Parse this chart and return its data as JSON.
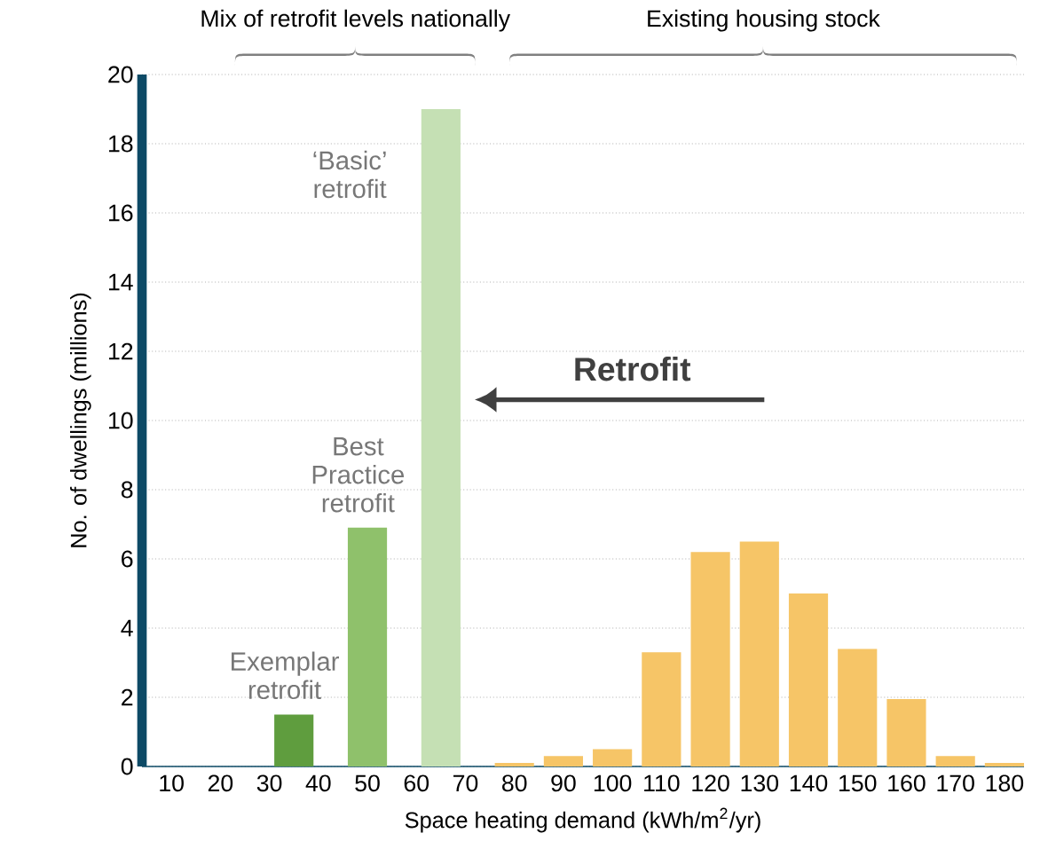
{
  "chart_data": {
    "type": "bar",
    "xlabel": "Space heating demand (kWh/m$^{2}$/yr)",
    "ylabel": "No. of dwellings (millions)",
    "x": [
      35,
      50,
      65,
      80,
      90,
      100,
      110,
      120,
      130,
      140,
      150,
      160,
      170,
      180
    ],
    "values": [
      1.5,
      6.9,
      19.0,
      0.1,
      0.3,
      0.5,
      3.3,
      6.2,
      6.5,
      5.0,
      3.4,
      1.95,
      0.3,
      0.1
    ],
    "colors": [
      "#5f9d3e",
      "#8fc16b",
      "#c5e0b4",
      "#f6c567",
      "#f6c567",
      "#f6c567",
      "#f6c567",
      "#f6c567",
      "#f6c567",
      "#f6c567",
      "#f6c567",
      "#f6c567",
      "#f6c567",
      "#f6c567"
    ],
    "xlim": [
      4,
      184
    ],
    "ylim": [
      0,
      20
    ],
    "xticks": [
      10,
      20,
      30,
      40,
      50,
      60,
      70,
      80,
      90,
      100,
      110,
      120,
      130,
      140,
      150,
      160,
      170,
      180
    ],
    "yticks": [
      0,
      2,
      4,
      6,
      8,
      10,
      12,
      14,
      16,
      18,
      20
    ],
    "grid": "y",
    "annotations": [
      {
        "text": "Exemplar retrofit",
        "x": 35,
        "y": 1.5
      },
      {
        "text": "Best Practice retrofit",
        "x": 50,
        "y": 6.9
      },
      {
        "text": "‘Basic’ retrofit",
        "x": 65,
        "y": 19.0
      },
      "Retrofit",
      "Mix of retrofit levels   nationally",
      "Existing housing stock"
    ]
  }
}
